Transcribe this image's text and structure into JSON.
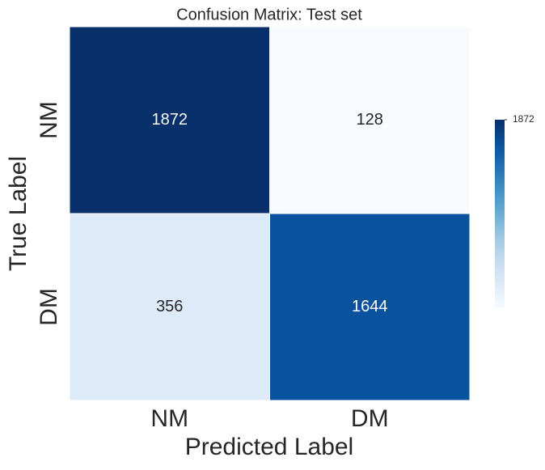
{
  "chart_data": {
    "type": "heatmap",
    "title": "Confusion Matrix: Test set",
    "x_label": "Predicted Label",
    "y_label": "True Label",
    "x_categories": [
      "NM",
      "DM"
    ],
    "y_categories": [
      "NM",
      "DM"
    ],
    "values": [
      [
        1872,
        128
      ],
      [
        356,
        1644
      ]
    ],
    "colormap": "Blues",
    "colorbar_lim": [
      128,
      1872
    ],
    "colorbar_ticks": [
      1872
    ]
  }
}
